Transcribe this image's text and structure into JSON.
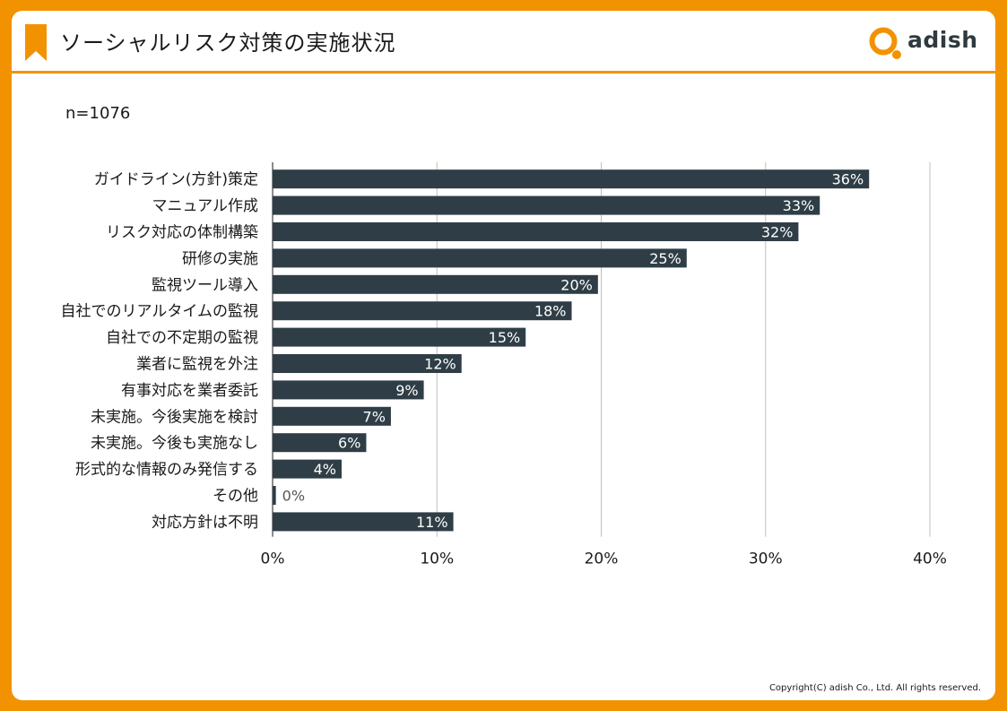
{
  "header": {
    "title": "ソーシャルリスク対策の実施状況",
    "bookmark_icon": "bookmark-icon",
    "logo_text": "adish",
    "logo_icon": "adish-logo-icon"
  },
  "colors": {
    "frame": "#f39200",
    "bar": "#2f3e46",
    "bar_label_inside": "#ffffff",
    "bar_label_outside": "#555555",
    "grid": "#bfbfbf"
  },
  "chart_data": {
    "type": "bar",
    "orientation": "horizontal",
    "subtitle": "n=1076",
    "categories": [
      "ガイドライン(方針)策定",
      "マニュアル作成",
      "リスク対応の体制構築",
      "研修の実施",
      "監視ツール導入",
      "自社でのリアルタイムの監視",
      "自社での不定期の監視",
      "業者に監視を外注",
      "有事対応を業者委託",
      "未実施。今後実施を検討",
      "未実施。今後も実施なし",
      "形式的な情報のみ発信する",
      "その他",
      "対応方針は不明"
    ],
    "values": [
      36.3,
      33.3,
      32.0,
      25.2,
      19.8,
      18.2,
      15.4,
      11.5,
      9.2,
      7.2,
      5.7,
      4.2,
      0.2,
      11.0
    ],
    "data_labels": [
      "36%",
      "33%",
      "32%",
      "25%",
      "20%",
      "18%",
      "15%",
      "12%",
      "9%",
      "7%",
      "6%",
      "4%",
      "0%",
      "11%"
    ],
    "xlim": [
      0,
      40
    ],
    "x_ticks": [
      0,
      10,
      20,
      30,
      40
    ],
    "x_tick_labels": [
      "0%",
      "10%",
      "20%",
      "30%",
      "40%"
    ],
    "grid": true
  },
  "footer": {
    "copyright": "Copyright(C) adish Co., Ltd.  All rights reserved."
  }
}
